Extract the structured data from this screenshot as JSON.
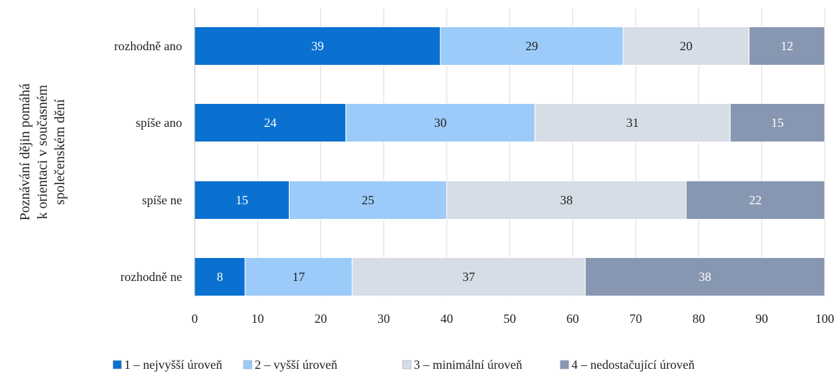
{
  "chart_data": {
    "type": "bar",
    "orientation": "horizontal",
    "stacked": true,
    "categories": [
      "rozhodně ano",
      "spíše ano",
      "spíše ne",
      "rozhodně ne"
    ],
    "series": [
      {
        "name": "1 –  nejvyšší úroveň",
        "values": [
          39,
          24,
          15,
          8
        ],
        "color": "#0a71d0",
        "label_color": "#ffffff"
      },
      {
        "name": "2 – vyšší úroveň",
        "values": [
          29,
          30,
          25,
          17
        ],
        "color": "#9ccbf9",
        "label_color": "#222222"
      },
      {
        "name": "3 – minimální úroveň",
        "values": [
          20,
          31,
          38,
          37
        ],
        "color": "#d6dde6",
        "label_color": "#222222"
      },
      {
        "name": "4 – nedostačující úroveň",
        "values": [
          12,
          15,
          22,
          38
        ],
        "color": "#8797b1",
        "label_color": "#ffffff"
      }
    ],
    "ylabel_lines": [
      "Poznávání dějin pomáhá",
      "k orientaci v současném",
      "společenském dění"
    ],
    "xlim": [
      0,
      100
    ],
    "xticks": [
      0,
      10,
      20,
      30,
      40,
      50,
      60,
      70,
      80,
      90,
      100
    ],
    "grid": true,
    "legend_position": "bottom"
  }
}
